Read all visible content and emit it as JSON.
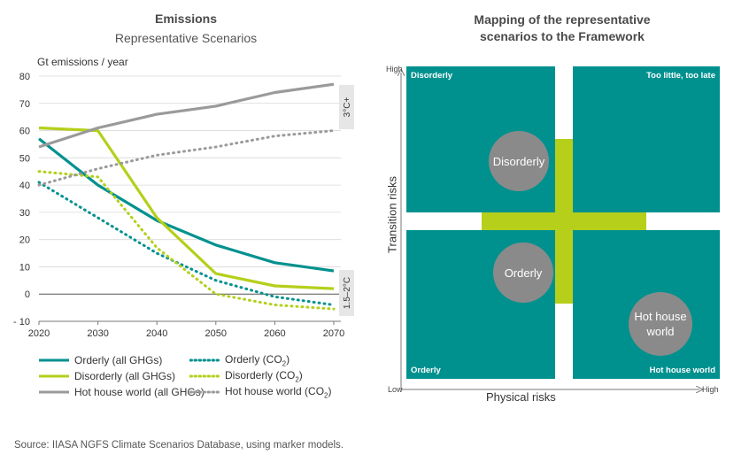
{
  "left_chart": {
    "title": "Emissions",
    "subtitle": "Representative Scenarios",
    "ylabel": "Gt emissions / year",
    "band_top_label": "3°C+",
    "band_bottom_label": "1.5–2°C"
  },
  "right_chart": {
    "title_line1": "Mapping of the representative",
    "title_line2": "scenarios to the Framework",
    "y_axis_label": "Transition risks",
    "x_axis_label": "Physical risks",
    "y_high": "High",
    "x_low": "Low",
    "x_high": "High",
    "quadrants": {
      "top_left": "Disorderly",
      "top_right": "Too little, too late",
      "bottom_left": "Orderly",
      "bottom_right": "Hot house world"
    },
    "circles": {
      "disorderly": "Disorderly",
      "orderly": "Orderly",
      "hot_house_line1": "Hot house",
      "hot_house_line2": "world"
    }
  },
  "legend": {
    "orderly_ghg": "Orderly (all GHGs)",
    "orderly_co2": "Orderly (CO",
    "disorderly_ghg": "Disorderly (all GHGs)",
    "disorderly_co2": "Disorderly (CO",
    "hothouse_ghg": "Hot house world (all GHGs)",
    "hothouse_co2": "Hot house world (CO",
    "co2_subscript": "2",
    "close_paren": ")"
  },
  "source": "Source: IIASA NGFS Climate Scenarios Database, using marker models.",
  "colors": {
    "teal": "#00918f",
    "green": "#b5cf1a",
    "grey": "#9a9a9a",
    "circle_grey": "#8a8a8a"
  },
  "chart_data": [
    {
      "type": "line",
      "title": "Emissions",
      "subtitle": "Representative Scenarios",
      "ylabel": "Gt emissions / year",
      "x": [
        2020,
        2030,
        2040,
        2050,
        2060,
        2070
      ],
      "ylim": [
        -10,
        80
      ],
      "yticks": [
        -10,
        0,
        10,
        20,
        30,
        40,
        50,
        60,
        70,
        80
      ],
      "grid": true,
      "legend_position": "bottom",
      "series": [
        {
          "name": "Orderly (all GHGs)",
          "color": "#00918f",
          "style": "solid",
          "values": [
            57,
            40,
            27,
            18,
            11.5,
            8.5
          ]
        },
        {
          "name": "Orderly (CO2)",
          "color": "#00918f",
          "style": "dotted",
          "values": [
            41,
            28,
            15,
            5,
            -1,
            -4
          ]
        },
        {
          "name": "Disorderly (all GHGs)",
          "color": "#b5cf1a",
          "style": "solid",
          "values": [
            61,
            60,
            28,
            7.5,
            3,
            2
          ]
        },
        {
          "name": "Disorderly (CO2)",
          "color": "#b5cf1a",
          "style": "dotted",
          "values": [
            45,
            43,
            17,
            0,
            -4,
            -5.5
          ]
        },
        {
          "name": "Hot house world (all GHGs)",
          "color": "#9a9a9a",
          "style": "solid",
          "values": [
            54,
            61,
            66,
            69,
            74,
            77
          ]
        },
        {
          "name": "Hot house world (CO2)",
          "color": "#9a9a9a",
          "style": "dotted",
          "values": [
            40,
            46,
            51,
            54,
            58,
            60
          ]
        }
      ]
    },
    {
      "type": "quadrant",
      "title": "Mapping of the representative scenarios to the Framework",
      "xlabel": "Physical risks",
      "ylabel": "Transition risks",
      "quadrants": [
        "Disorderly",
        "Too little, too late",
        "Orderly",
        "Hot house world"
      ],
      "points": [
        "Disorderly",
        "Orderly",
        "Hot house world"
      ]
    }
  ]
}
